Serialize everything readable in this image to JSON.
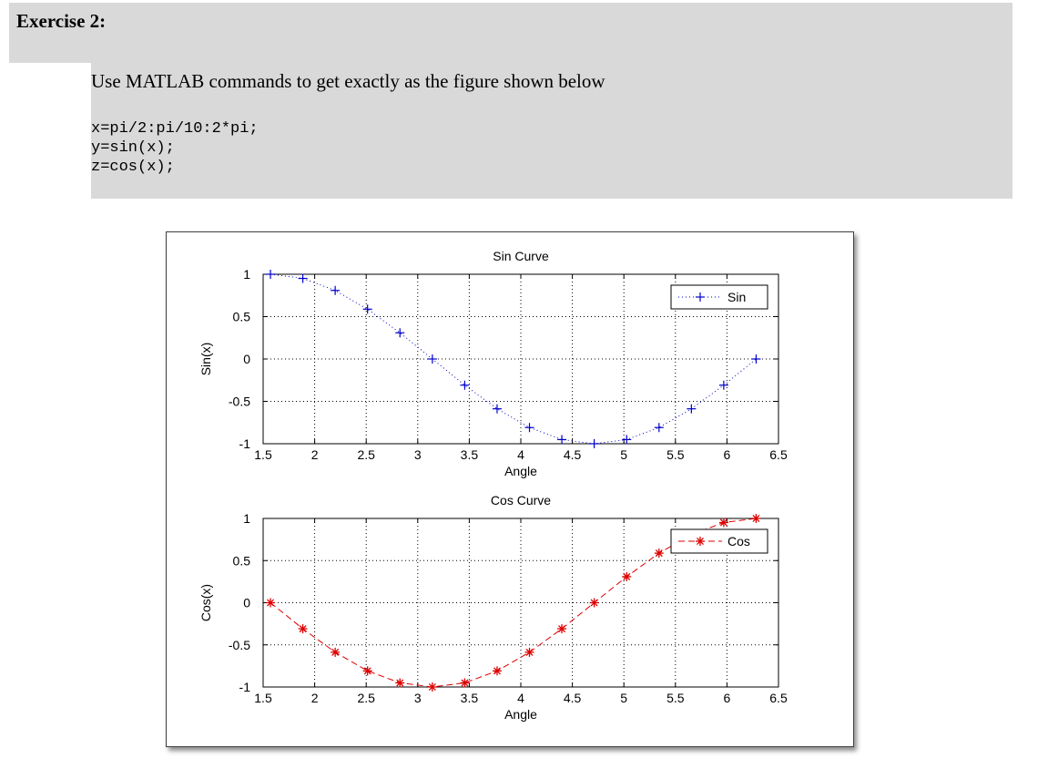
{
  "header": {
    "title": "Exercise 2:"
  },
  "task": {
    "instruction": "Use MATLAB commands to get exactly as the figure shown below",
    "code_lines": [
      "x=pi/2:pi/10:2*pi;",
      "y=sin(x);",
      "z=cos(x);"
    ]
  },
  "colors": {
    "sin": "#0000cc",
    "cos": "#dd0000",
    "grid": "#000000",
    "panel_bg": "#d9d9d9"
  },
  "chart_data": [
    {
      "type": "line",
      "title": "Sin Curve",
      "xlabel": "Angle",
      "ylabel": "Sin(x)",
      "xlim": [
        1.5,
        6.5
      ],
      "ylim": [
        -1,
        1
      ],
      "xticks": [
        "1.5",
        "2",
        "2.5",
        "3",
        "3.5",
        "4",
        "4.5",
        "5",
        "5.5",
        "6",
        "6.5"
      ],
      "yticks": [
        "-1",
        "-0.5",
        "0",
        "0.5",
        "1"
      ],
      "grid": true,
      "legend_position": "top-right",
      "series": [
        {
          "name": "Sin",
          "line_style": "dotted",
          "marker": "+",
          "color": "#0000cc",
          "x": [
            1.571,
            1.885,
            2.199,
            2.513,
            2.827,
            3.142,
            3.456,
            3.77,
            4.084,
            4.398,
            4.712,
            5.027,
            5.341,
            5.655,
            5.969,
            6.283
          ],
          "y": [
            1.0,
            0.951,
            0.809,
            0.588,
            0.309,
            0.0,
            -0.309,
            -0.588,
            -0.809,
            -0.951,
            -1.0,
            -0.951,
            -0.809,
            -0.588,
            -0.309,
            0.0
          ]
        }
      ]
    },
    {
      "type": "line",
      "title": "Cos Curve",
      "xlabel": "Angle",
      "ylabel": "Cos(x)",
      "xlim": [
        1.5,
        6.5
      ],
      "ylim": [
        -1,
        1
      ],
      "xticks": [
        "1.5",
        "2",
        "2.5",
        "3",
        "3.5",
        "4",
        "4.5",
        "5",
        "5.5",
        "6",
        "6.5"
      ],
      "yticks": [
        "-1",
        "-0.5",
        "0",
        "0.5",
        "1"
      ],
      "grid": true,
      "legend_position": "top-right",
      "series": [
        {
          "name": "Cos",
          "line_style": "dashed",
          "marker": "*",
          "color": "#dd0000",
          "x": [
            1.571,
            1.885,
            2.199,
            2.513,
            2.827,
            3.142,
            3.456,
            3.77,
            4.084,
            4.398,
            4.712,
            5.027,
            5.341,
            5.655,
            5.969,
            6.283
          ],
          "y": [
            0.0,
            -0.309,
            -0.588,
            -0.809,
            -0.951,
            -1.0,
            -0.951,
            -0.809,
            -0.588,
            -0.309,
            0.0,
            0.309,
            0.588,
            0.809,
            0.951,
            1.0
          ]
        }
      ]
    }
  ]
}
